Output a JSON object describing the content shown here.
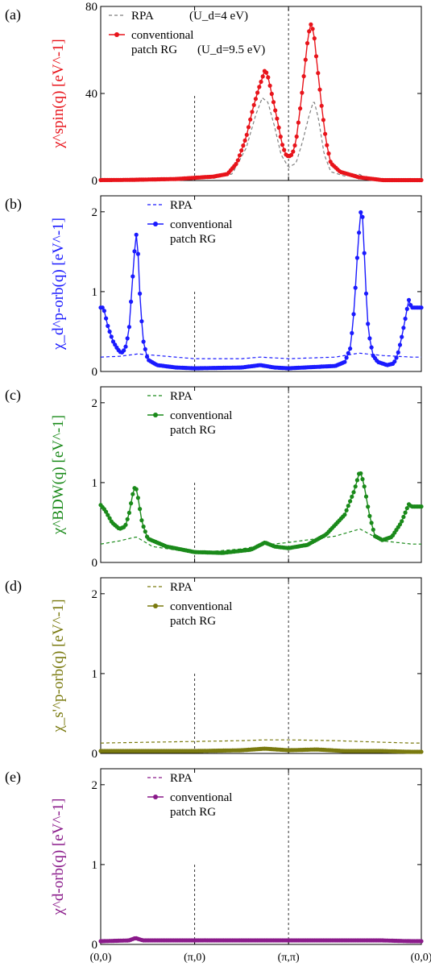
{
  "chart_data": [
    {
      "type": "line",
      "panel_label": "(a)",
      "ylabel": "χ^spin(q) [eV^-1]",
      "color": "#e8141b",
      "rpa_color": "#7f7f7f",
      "ylim": [
        0,
        80
      ],
      "yticks": [
        0,
        40,
        80
      ],
      "x_categories": [
        "(0,0)",
        "(π,0)",
        "(π,π)",
        "(0,0)"
      ],
      "legend": {
        "rpa": "RPA",
        "rpa_note": "(U_d=4 eV)",
        "rg_line1": "conventional",
        "rg_line2": "patch RG",
        "rg_note": "(U_d=9.5 eV)"
      },
      "rg_keypoints": [
        [
          0,
          0.2
        ],
        [
          0.3,
          0.3
        ],
        [
          0.8,
          0.7
        ],
        [
          1.2,
          1.8
        ],
        [
          1.35,
          3
        ],
        [
          1.45,
          8
        ],
        [
          1.55,
          20
        ],
        [
          1.62,
          33
        ],
        [
          1.68,
          42
        ],
        [
          1.72,
          47
        ],
        [
          1.75,
          51
        ],
        [
          1.78,
          48
        ],
        [
          1.82,
          40
        ],
        [
          1.88,
          28
        ],
        [
          1.93,
          17
        ],
        [
          1.97,
          12
        ],
        [
          2,
          11
        ],
        [
          2.04,
          12
        ],
        [
          2.08,
          18
        ],
        [
          2.13,
          35
        ],
        [
          2.18,
          55
        ],
        [
          2.21,
          67
        ],
        [
          2.24,
          72
        ],
        [
          2.27,
          68
        ],
        [
          2.3,
          55
        ],
        [
          2.35,
          35
        ],
        [
          2.4,
          18
        ],
        [
          2.45,
          8
        ],
        [
          2.55,
          4
        ],
        [
          2.75,
          1.5
        ],
        [
          3,
          0.2
        ]
      ],
      "rpa_keypoints": [
        [
          0,
          0.1
        ],
        [
          1.2,
          1
        ],
        [
          1.4,
          3
        ],
        [
          1.55,
          15
        ],
        [
          1.65,
          30
        ],
        [
          1.72,
          38
        ],
        [
          1.78,
          36
        ],
        [
          1.85,
          25
        ],
        [
          1.92,
          12
        ],
        [
          2,
          6
        ],
        [
          2.08,
          8
        ],
        [
          2.15,
          18
        ],
        [
          2.22,
          30
        ],
        [
          2.27,
          37
        ],
        [
          2.32,
          28
        ],
        [
          2.38,
          12
        ],
        [
          2.45,
          4
        ],
        [
          2.6,
          2
        ],
        [
          2.75,
          3
        ],
        [
          2.85,
          0.5
        ],
        [
          3,
          0.1
        ]
      ]
    },
    {
      "type": "line",
      "panel_label": "(b)",
      "ylabel": "χ_d^p-orb(q) [eV^-1]",
      "color": "#1a1aff",
      "rpa_color": "#1a1aff",
      "ylim": [
        0,
        2.2
      ],
      "yticks": [
        0,
        1,
        2
      ],
      "x_categories": [
        "(0,0)",
        "(π,0)",
        "(π,π)",
        "(0,0)"
      ],
      "legend": {
        "rpa": "RPA",
        "rg_line1": "conventional",
        "rg_line2": "patch RG"
      },
      "rg_keypoints": [
        [
          0,
          0.8
        ],
        [
          0.03,
          0.8
        ],
        [
          0.08,
          0.55
        ],
        [
          0.13,
          0.38
        ],
        [
          0.18,
          0.28
        ],
        [
          0.22,
          0.23
        ],
        [
          0.26,
          0.28
        ],
        [
          0.3,
          0.5
        ],
        [
          0.33,
          1
        ],
        [
          0.36,
          1.5
        ],
        [
          0.38,
          1.72
        ],
        [
          0.4,
          1.45
        ],
        [
          0.42,
          0.9
        ],
        [
          0.45,
          0.4
        ],
        [
          0.5,
          0.15
        ],
        [
          0.6,
          0.08
        ],
        [
          0.8,
          0.05
        ],
        [
          1,
          0.04
        ],
        [
          1.5,
          0.05
        ],
        [
          1.7,
          0.08
        ],
        [
          1.85,
          0.05
        ],
        [
          2,
          0.04
        ],
        [
          2.5,
          0.07
        ],
        [
          2.6,
          0.12
        ],
        [
          2.66,
          0.3
        ],
        [
          2.7,
          0.8
        ],
        [
          2.73,
          1.4
        ],
        [
          2.76,
          1.9
        ],
        [
          2.78,
          2.1
        ],
        [
          2.8,
          1.7
        ],
        [
          2.82,
          1.1
        ],
        [
          2.85,
          0.5
        ],
        [
          2.9,
          0.2
        ],
        [
          2.95,
          0.12
        ],
        [
          3.05,
          0.08
        ],
        [
          3.12,
          0.1
        ],
        [
          3.16,
          0.2
        ],
        [
          3.2,
          0.4
        ],
        [
          3.25,
          0.7
        ],
        [
          3.28,
          0.9
        ],
        [
          3.31,
          0.8
        ]
      ],
      "rpa_keypoints": [
        [
          0,
          0.18
        ],
        [
          0.2,
          0.19
        ],
        [
          0.4,
          0.22
        ],
        [
          0.7,
          0.19
        ],
        [
          1,
          0.16
        ],
        [
          1.5,
          0.16
        ],
        [
          1.7,
          0.18
        ],
        [
          2,
          0.16
        ],
        [
          2.5,
          0.18
        ],
        [
          2.75,
          0.23
        ],
        [
          3,
          0.2
        ],
        [
          3.31,
          0.18
        ]
      ]
    },
    {
      "type": "line",
      "panel_label": "(c)",
      "ylabel": "χ^BDW(q) [eV^-1]",
      "color": "#1a8a1a",
      "rpa_color": "#1a8a1a",
      "ylim": [
        0,
        2.2
      ],
      "yticks": [
        0,
        1,
        2
      ],
      "x_categories": [
        "(0,0)",
        "(π,0)",
        "(π,π)",
        "(0,0)"
      ],
      "legend": {
        "rpa": "RPA",
        "rg_line1": "conventional",
        "rg_line2": "patch RG"
      },
      "rg_keypoints": [
        [
          0,
          0.72
        ],
        [
          0.05,
          0.65
        ],
        [
          0.12,
          0.5
        ],
        [
          0.2,
          0.42
        ],
        [
          0.26,
          0.45
        ],
        [
          0.3,
          0.6
        ],
        [
          0.34,
          0.85
        ],
        [
          0.37,
          0.97
        ],
        [
          0.4,
          0.8
        ],
        [
          0.44,
          0.5
        ],
        [
          0.5,
          0.3
        ],
        [
          0.7,
          0.2
        ],
        [
          1,
          0.13
        ],
        [
          1.3,
          0.12
        ],
        [
          1.6,
          0.16
        ],
        [
          1.75,
          0.25
        ],
        [
          1.85,
          0.2
        ],
        [
          2,
          0.18
        ],
        [
          2.2,
          0.22
        ],
        [
          2.4,
          0.35
        ],
        [
          2.6,
          0.6
        ],
        [
          2.7,
          0.9
        ],
        [
          2.76,
          1.15
        ],
        [
          2.8,
          1
        ],
        [
          2.86,
          0.6
        ],
        [
          2.92,
          0.33
        ],
        [
          3,
          0.28
        ],
        [
          3.1,
          0.32
        ],
        [
          3.2,
          0.5
        ],
        [
          3.28,
          0.73
        ],
        [
          3.31,
          0.7
        ]
      ],
      "rpa_keypoints": [
        [
          0,
          0.23
        ],
        [
          0.2,
          0.27
        ],
        [
          0.38,
          0.32
        ],
        [
          0.55,
          0.2
        ],
        [
          1,
          0.12
        ],
        [
          1.5,
          0.17
        ],
        [
          1.75,
          0.22
        ],
        [
          2,
          0.25
        ],
        [
          2.5,
          0.33
        ],
        [
          2.76,
          0.42
        ],
        [
          3,
          0.27
        ],
        [
          3.31,
          0.23
        ]
      ]
    },
    {
      "type": "line",
      "panel_label": "(d)",
      "ylabel": "χ_s'^p-orb(q) [eV^-1]",
      "color": "#7a7a0f",
      "rpa_color": "#7a7a0f",
      "ylim": [
        0,
        2.2
      ],
      "yticks": [
        0,
        1,
        2
      ],
      "x_categories": [
        "(0,0)",
        "(π,0)",
        "(π,π)",
        "(0,0)"
      ],
      "legend": {
        "rpa": "RPA",
        "rg_line1": "conventional",
        "rg_line2": "patch RG"
      },
      "rg_keypoints": [
        [
          0,
          0.03
        ],
        [
          0.5,
          0.03
        ],
        [
          1,
          0.03
        ],
        [
          1.5,
          0.04
        ],
        [
          1.75,
          0.06
        ],
        [
          2,
          0.04
        ],
        [
          2.3,
          0.05
        ],
        [
          2.6,
          0.03
        ],
        [
          3,
          0.03
        ],
        [
          3.31,
          0.02
        ]
      ],
      "rpa_keypoints": [
        [
          0,
          0.13
        ],
        [
          0.5,
          0.14
        ],
        [
          1,
          0.15
        ],
        [
          1.5,
          0.16
        ],
        [
          1.75,
          0.17
        ],
        [
          2,
          0.17
        ],
        [
          2.5,
          0.16
        ],
        [
          3,
          0.14
        ],
        [
          3.31,
          0.13
        ]
      ]
    },
    {
      "type": "line",
      "panel_label": "(e)",
      "ylabel": "χ^d-orb(q) [eV^-1]",
      "color": "#8a1a8a",
      "rpa_color": "#8a1a8a",
      "ylim": [
        0,
        2.2
      ],
      "yticks": [
        0,
        1,
        2
      ],
      "x_categories": [
        "(0,0)",
        "(π,0)",
        "(π,π)",
        "(0,0)"
      ],
      "legend": {
        "rpa": "RPA",
        "rg_line1": "conventional",
        "rg_line2": "patch RG"
      },
      "rg_keypoints": [
        [
          0,
          0.04
        ],
        [
          0.3,
          0.05
        ],
        [
          0.37,
          0.08
        ],
        [
          0.45,
          0.05
        ],
        [
          1,
          0.05
        ],
        [
          1.5,
          0.05
        ],
        [
          2,
          0.05
        ],
        [
          2.5,
          0.05
        ],
        [
          3,
          0.05
        ],
        [
          3.31,
          0.04
        ]
      ],
      "rpa_keypoints": [
        [
          0,
          0.06
        ],
        [
          1,
          0.06
        ],
        [
          2,
          0.06
        ],
        [
          3,
          0.06
        ],
        [
          3.31,
          0.06
        ]
      ]
    }
  ]
}
